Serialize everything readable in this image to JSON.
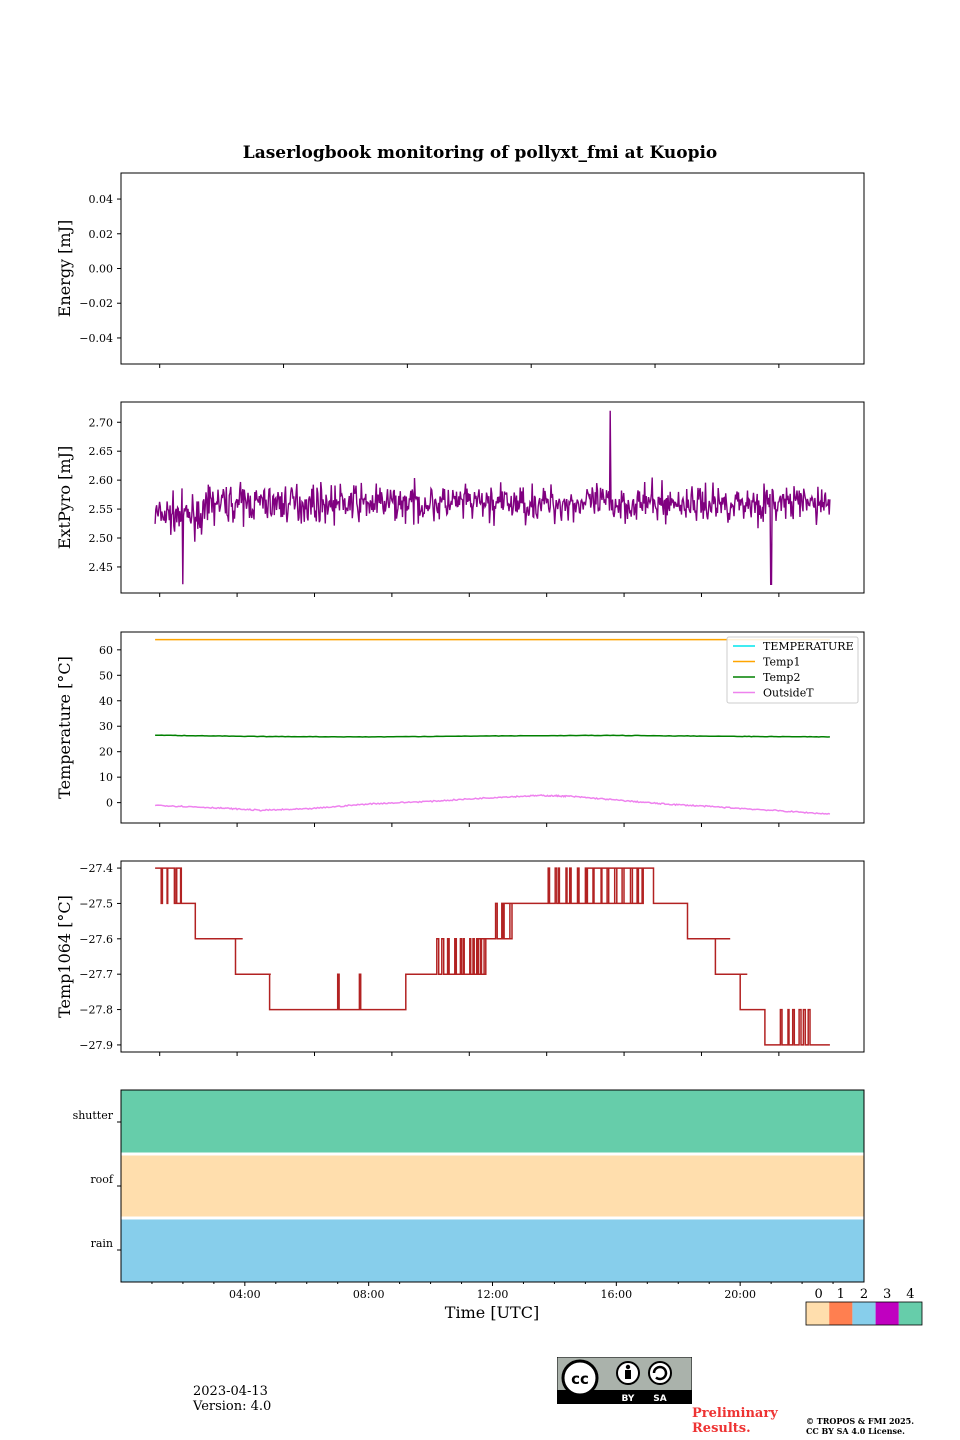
{
  "chart_data": {
    "title": "Laserlogbook monitoring of pollyxt_fmi at Kuopio",
    "xlabel": "Time [UTC]",
    "xlim": [
      0,
      24
    ],
    "xticks": [
      "04:00",
      "08:00",
      "12:00",
      "16:00",
      "20:00"
    ],
    "xtick_hours": [
      4,
      8,
      12,
      16,
      20
    ],
    "panels": [
      {
        "type": "line",
        "ylabel": "Energy [mJ]",
        "ylim": [
          -0.055,
          0.055
        ],
        "yticks": [
          "0.04",
          "0.02",
          "0.00",
          "−0.02",
          "−0.04"
        ],
        "ytick_values": [
          0.04,
          0.02,
          0.0,
          -0.02,
          -0.04
        ],
        "series": []
      },
      {
        "type": "line",
        "ylabel": "ExtPyro [mJ]",
        "ylim": [
          2.405,
          2.735
        ],
        "yticks": [
          "2.70",
          "2.65",
          "2.60",
          "2.55",
          "2.50",
          "2.45"
        ],
        "ytick_values": [
          2.7,
          2.65,
          2.6,
          2.55,
          2.5,
          2.45
        ],
        "series": [
          {
            "name": "ExtPyro",
            "color": "#800080",
            "mean": 2.56,
            "noise": 0.05,
            "start": 1.1,
            "end": 22.9,
            "peaks": [
              [
                2.0,
                2.42
              ],
              [
                15.8,
                2.72
              ],
              [
                21.0,
                2.42
              ]
            ]
          }
        ]
      },
      {
        "type": "line",
        "ylabel": "Temperature [°C]",
        "ylim": [
          -8,
          67
        ],
        "yticks": [
          "60",
          "50",
          "40",
          "30",
          "20",
          "10",
          "0"
        ],
        "ytick_values": [
          60,
          50,
          40,
          30,
          20,
          10,
          0
        ],
        "legend": "top-right",
        "series": [
          {
            "name": "TEMPERATURE",
            "color": "#00e5ee",
            "x": [],
            "y": []
          },
          {
            "name": "Temp1",
            "color": "#ffa500",
            "x": [
              1.1,
              22.9
            ],
            "y": [
              64,
              64
            ]
          },
          {
            "name": "Temp2",
            "color": "#008000",
            "x": [
              1.1,
              4,
              8,
              12,
              16,
              20,
              22.9
            ],
            "y": [
              26.5,
              26.0,
              25.8,
              26.2,
              26.4,
              26.0,
              25.8
            ]
          },
          {
            "name": "OutsideT",
            "color": "#ee82ee",
            "x": [
              1.1,
              3,
              4.5,
              6,
              8,
              10,
              12,
              13.5,
              14.5,
              16,
              17.5,
              19,
              21,
              22.9
            ],
            "y": [
              -1.0,
              -2.0,
              -3.0,
              -2.5,
              -0.5,
              0.5,
              2.0,
              2.8,
              2.5,
              1.0,
              -0.5,
              -1.5,
              -3.0,
              -4.5
            ]
          }
        ]
      },
      {
        "type": "line",
        "ylabel": "Temp1064 [°C]",
        "ylim": [
          -27.92,
          -27.38
        ],
        "yticks": [
          "−27.4",
          "−27.5",
          "−27.6",
          "−27.7",
          "−27.8",
          "−27.9"
        ],
        "ytick_values": [
          -27.4,
          -27.5,
          -27.6,
          -27.7,
          -27.8,
          -27.9
        ],
        "series": [
          {
            "name": "Temp1064",
            "color": "#b22222",
            "steps": [
              [
                1.1,
                -27.4
              ],
              [
                1.8,
                -27.5
              ],
              [
                2.4,
                -27.6
              ],
              [
                3.7,
                -27.7
              ],
              [
                4.8,
                -27.8
              ],
              [
                9.2,
                -27.7
              ],
              [
                11.5,
                -27.6
              ],
              [
                12.3,
                -27.5
              ],
              [
                15.0,
                -27.4
              ],
              [
                17.2,
                -27.5
              ],
              [
                18.3,
                -27.6
              ],
              [
                19.2,
                -27.7
              ],
              [
                20.0,
                -27.8
              ],
              [
                20.8,
                -27.9
              ],
              [
                22.9,
                -27.9
              ]
            ],
            "flicker": [
              [
                1.3,
                2.0,
                -27.5
              ],
              [
                3.2,
                3.9,
                -27.6
              ],
              [
                4.3,
                4.9,
                -27.7
              ],
              [
                7.0,
                7.1,
                -27.7
              ],
              [
                7.7,
                7.8,
                -27.7
              ],
              [
                10.2,
                11.8,
                -27.6
              ],
              [
                12.1,
                12.6,
                -27.5
              ],
              [
                13.8,
                17.0,
                -27.4
              ],
              [
                19.0,
                19.7,
                -27.6
              ],
              [
                19.8,
                20.2,
                -27.7
              ],
              [
                21.3,
                22.2,
                -27.8
              ]
            ]
          }
        ]
      },
      {
        "type": "heatmap",
        "rows": [
          "shutter",
          "roof",
          "rain"
        ],
        "row_codes": [
          4,
          0,
          2
        ],
        "colorbar_ticks": [
          "0",
          "1",
          "2",
          "3",
          "4"
        ],
        "colorbar_colors": [
          "#ffdead",
          "#ff7f50",
          "#87ceeb",
          "#c000c0",
          "#66cdaa"
        ]
      }
    ]
  },
  "footer": {
    "date": "2023-04-13",
    "version": "Version: 4.0",
    "preliminary_line1": "Preliminary",
    "preliminary_line2": "Results.",
    "copyright_line1": "© TROPOS & FMI 2025.",
    "copyright_line2": "CC BY SA 4.0 License.",
    "badge_by": "BY",
    "badge_sa": "SA"
  }
}
